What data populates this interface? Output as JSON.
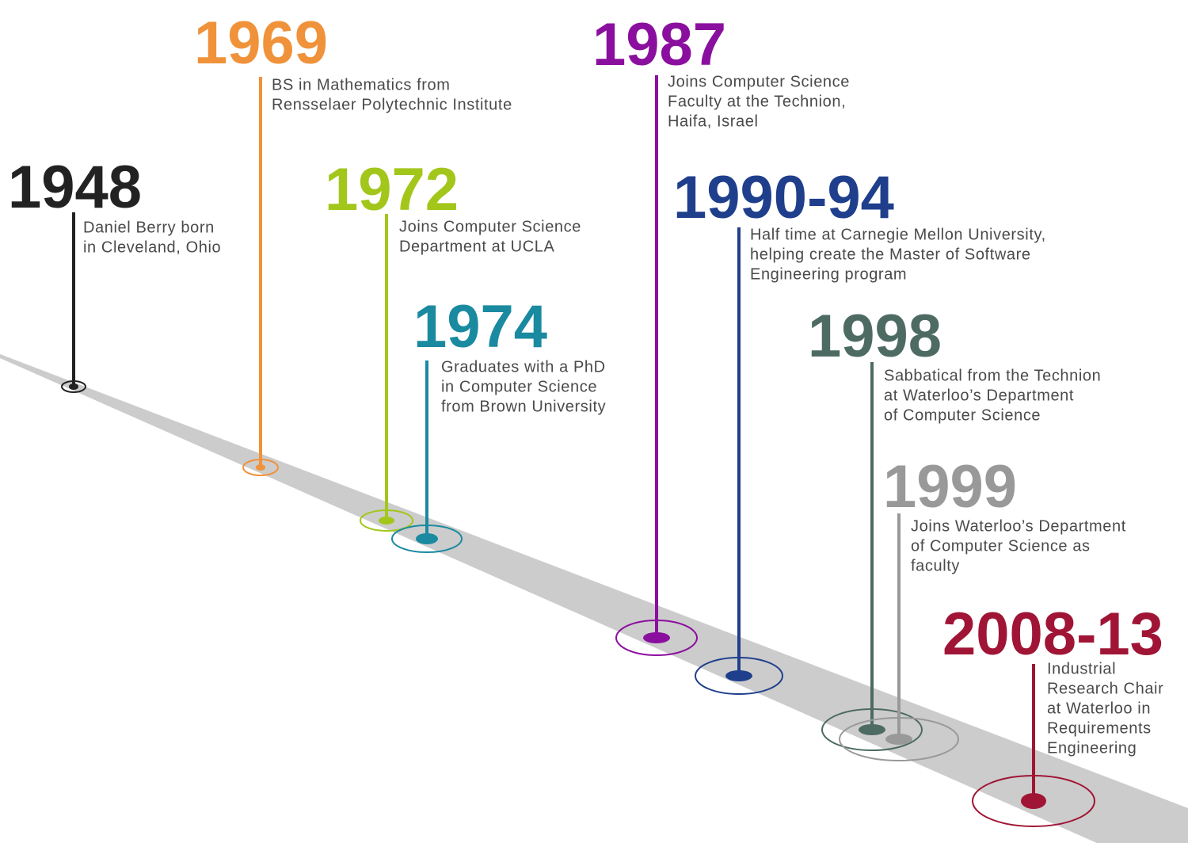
{
  "events": [
    {
      "year": "1948",
      "color": "#222222",
      "description": [
        "Daniel Berry born",
        "in Cleveland, Ohio"
      ]
    },
    {
      "year": "1969",
      "color": "#f0923a",
      "description": [
        "BS in Mathematics from",
        "Rensselaer Polytechnic Institute"
      ]
    },
    {
      "year": "1972",
      "color": "#a3c61b",
      "description": [
        "Joins Computer Science",
        "Department at UCLA"
      ]
    },
    {
      "year": "1974",
      "color": "#1a8aa0",
      "description": [
        "Graduates with a PhD",
        "in Computer Science",
        "from Brown University"
      ]
    },
    {
      "year": "1987",
      "color": "#8b0f9e",
      "description": [
        "Joins Computer Science",
        "Faculty at the Technion,",
        "Haifa, Israel"
      ]
    },
    {
      "year": "1990-94",
      "color": "#1f3f8c",
      "description": [
        "Half time at Carnegie Mellon University,",
        "helping create the Master of Software",
        "Engineering program"
      ]
    },
    {
      "year": "1998",
      "color": "#4d6b63",
      "description": [
        "Sabbatical from the Technion",
        "at Waterloo’s Department",
        "of Computer Science"
      ]
    },
    {
      "year": "1999",
      "color": "#999999",
      "description": [
        "Joins Waterloo’s Department",
        "of Computer Science as",
        "faculty"
      ]
    },
    {
      "year": "2008-13",
      "color": "#a01535",
      "description": [
        "Industrial",
        "Research Chair",
        "at Waterloo in",
        "Requirements",
        "Engineering"
      ]
    }
  ]
}
